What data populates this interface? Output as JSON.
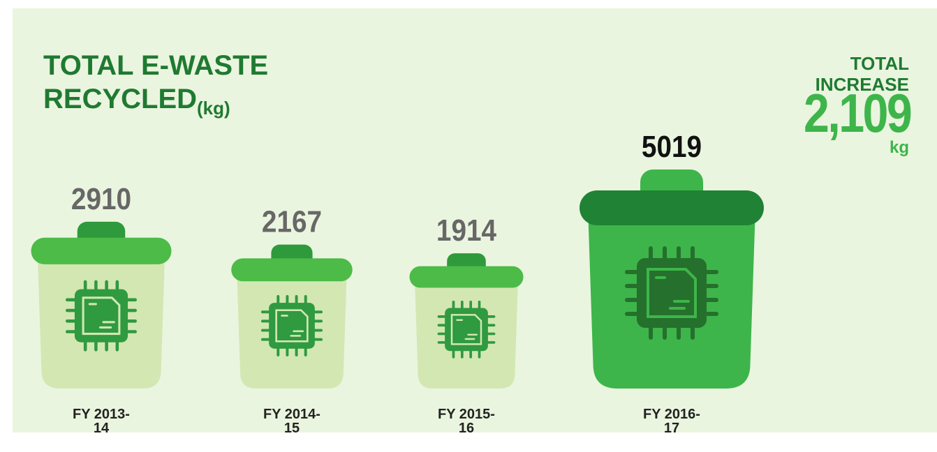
{
  "chart_data": {
    "type": "pictorial-bin",
    "title": "TOTAL E-WASTE RECYCLED",
    "unit_label": "(kg)",
    "categories": [
      "FY 2013-14",
      "FY 2014-15",
      "FY 2015-16",
      "FY 2016-17"
    ],
    "values": [
      2910,
      2167,
      1914,
      5019
    ],
    "colors": [
      "#d3e7b3",
      "#d3e7b3",
      "#d3e7b3",
      "#3db54a"
    ],
    "label_colors": [
      "#676767",
      "#676767",
      "#676767",
      "#111111"
    ],
    "annotation": {
      "label": "TOTAL INCREASE",
      "value": "2,109",
      "unit": "kg"
    }
  }
}
